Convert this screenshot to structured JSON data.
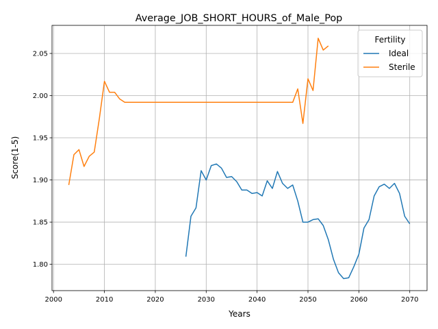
{
  "chart_data": {
    "type": "line",
    "title": "Average_JOB_SHORT_HOURS_of_Male_Pop",
    "xlabel": "Years",
    "ylabel": "Score(1-5)",
    "xlim": [
      1999.7,
      2073.4
    ],
    "ylim": [
      1.7688,
      2.0833
    ],
    "xticks": [
      2000,
      2010,
      2020,
      2030,
      2040,
      2050,
      2060,
      2070
    ],
    "yticks": [
      1.8,
      1.85,
      1.9,
      1.95,
      2.0,
      2.05
    ],
    "xtick_labels": [
      "2000",
      "2010",
      "2020",
      "2030",
      "2040",
      "2050",
      "2060",
      "2070"
    ],
    "ytick_labels": [
      "1.80",
      "1.85",
      "1.90",
      "1.95",
      "2.00",
      "2.05"
    ],
    "grid": true,
    "legend": {
      "title": "Fertility",
      "position": "top-right"
    },
    "series": [
      {
        "name": "Ideal",
        "color": "#1f77b4",
        "x": [
          2026,
          2027,
          2028,
          2029,
          2030,
          2031,
          2032,
          2033,
          2034,
          2035,
          2036,
          2037,
          2038,
          2039,
          2040,
          2041,
          2042,
          2043,
          2044,
          2045,
          2046,
          2047,
          2048,
          2049,
          2050,
          2051,
          2052,
          2053,
          2054,
          2055,
          2056,
          2057,
          2058,
          2059,
          2060,
          2061,
          2062,
          2063,
          2064,
          2065,
          2066,
          2067,
          2068,
          2069,
          2070
        ],
        "y": [
          1.809,
          1.857,
          1.867,
          1.911,
          1.9,
          1.917,
          1.919,
          1.914,
          1.903,
          1.904,
          1.898,
          1.888,
          1.888,
          1.884,
          1.885,
          1.881,
          1.899,
          1.89,
          1.91,
          1.896,
          1.89,
          1.894,
          1.875,
          1.85,
          1.85,
          1.853,
          1.854,
          1.846,
          1.829,
          1.806,
          1.79,
          1.783,
          1.784,
          1.797,
          1.812,
          1.843,
          1.853,
          1.881,
          1.892,
          1.895,
          1.89,
          1.896,
          1.884,
          1.857,
          1.848
        ]
      },
      {
        "name": "Sterile",
        "color": "#ff7f0e",
        "x": [
          2003,
          2004,
          2005,
          2006,
          2007,
          2008,
          2009,
          2010,
          2011,
          2012,
          2013,
          2014,
          2015,
          2016,
          2017,
          2018,
          2019,
          2020,
          2021,
          2022,
          2023,
          2024,
          2025,
          2026,
          2027,
          2028,
          2029,
          2030,
          2031,
          2032,
          2033,
          2034,
          2035,
          2036,
          2037,
          2038,
          2039,
          2040,
          2041,
          2042,
          2043,
          2044,
          2045,
          2046,
          2047,
          2048,
          2049,
          2050,
          2051,
          2052,
          2053,
          2054
        ],
        "y": [
          1.894,
          1.93,
          1.936,
          1.916,
          1.928,
          1.933,
          1.973,
          2.017,
          2.004,
          2.004,
          1.996,
          1.992,
          1.992,
          1.992,
          1.992,
          1.992,
          1.992,
          1.992,
          1.992,
          1.992,
          1.992,
          1.992,
          1.992,
          1.992,
          1.992,
          1.992,
          1.992,
          1.992,
          1.992,
          1.992,
          1.992,
          1.992,
          1.992,
          1.992,
          1.992,
          1.992,
          1.992,
          1.992,
          1.992,
          1.992,
          1.992,
          1.992,
          1.992,
          1.992,
          1.992,
          2.008,
          1.967,
          2.02,
          2.006,
          2.068,
          2.054,
          2.059
        ]
      }
    ]
  }
}
